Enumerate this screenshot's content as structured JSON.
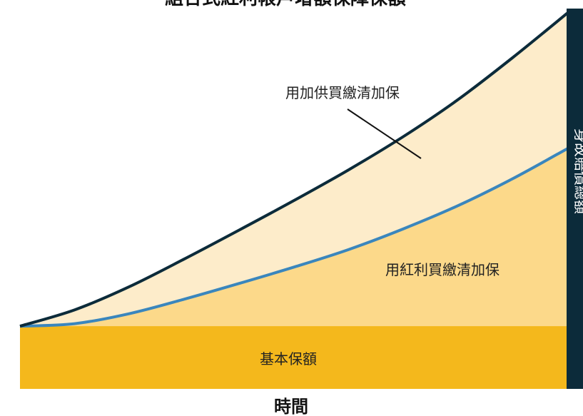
{
  "chart_data": {
    "type": "area",
    "title": "組合式紅利帳戶增額保障保額",
    "xlabel": "時間",
    "ylabel": "身故賠償總額",
    "x": [
      0,
      10,
      20,
      30,
      40,
      50,
      60,
      70,
      80,
      90,
      100
    ],
    "series": [
      {
        "name": "基本保額",
        "values": [
          1.0,
          1.0,
          1.0,
          1.0,
          1.0,
          1.0,
          1.0,
          1.0,
          1.0,
          1.0,
          1.0
        ],
        "color": "#f4b81c"
      },
      {
        "name": "用紅利買繳清加保",
        "values": [
          1.0,
          1.04,
          1.2,
          1.43,
          1.68,
          1.94,
          2.22,
          2.55,
          2.92,
          3.35,
          3.83
        ],
        "color": "#3a86bd"
      },
      {
        "name": "用加供買繳清加保",
        "values": [
          1.0,
          1.26,
          1.63,
          2.07,
          2.53,
          3.0,
          3.49,
          4.02,
          4.61,
          5.28,
          5.99
        ],
        "color": "#0c2b3a"
      }
    ],
    "ylim": [
      0,
      6.2
    ],
    "grid": false,
    "legend": "none"
  },
  "colors": {
    "base_fill": "#f4b81c",
    "bonus_fill": "#fcd98a",
    "supplement_fill": "#fdecca",
    "bonus_line": "#3a86bd",
    "total_line": "#0c2b3a",
    "side_bar": "#0c2b3a"
  }
}
